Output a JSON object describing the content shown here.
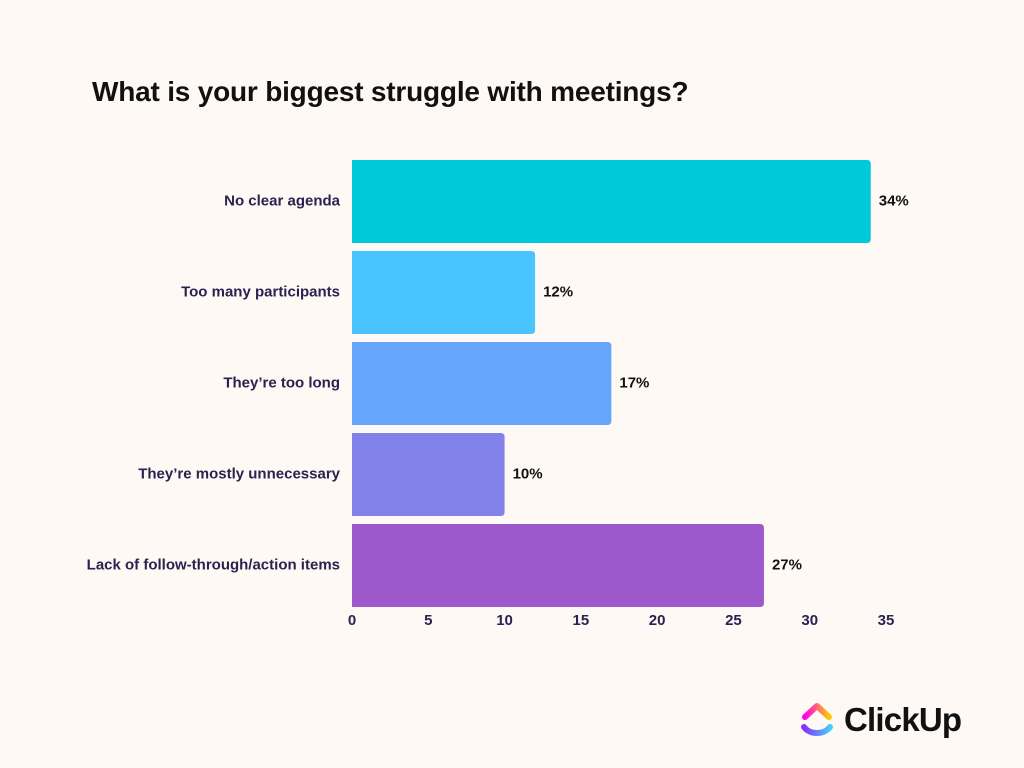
{
  "chart_data": {
    "type": "bar",
    "orientation": "horizontal",
    "title": "What is your biggest struggle with meetings?",
    "categories": [
      "No clear agenda",
      "Too many participants",
      "They’re too long",
      "They’re mostly unnecessary",
      "Lack of follow-through/action items"
    ],
    "values": [
      34,
      12,
      17,
      10,
      27
    ],
    "value_labels": [
      "34%",
      "12%",
      "17%",
      "10%",
      "27%"
    ],
    "colors": [
      "#00C9DB",
      "#4AC4FF",
      "#66A6FA",
      "#8382EA",
      "#9D58CC"
    ],
    "xlim": [
      0,
      35
    ],
    "xticks": [
      0,
      5,
      10,
      15,
      20,
      25,
      30,
      35
    ],
    "xtick_labels": [
      "0",
      "5",
      "10",
      "15",
      "20",
      "25",
      "30",
      "35"
    ],
    "grid": false,
    "legend": "none"
  },
  "brand": {
    "logo_text": "ClickUp",
    "logo_icon": "clickup-logo-icon"
  },
  "colors": {
    "background": "#FEF9F4",
    "title": "#111111",
    "labels": "#2A2250"
  }
}
